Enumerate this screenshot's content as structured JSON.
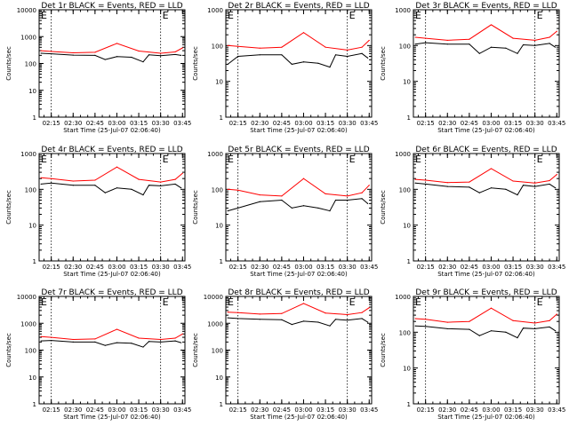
{
  "page": {
    "xlabel": "Start Time (25-Jul-07 02:06:40)",
    "ylabel": "Counts/sec",
    "x_ticks": [
      "02:15",
      "02:30",
      "02:45",
      "03:00",
      "03:15",
      "03:30",
      "03:45"
    ],
    "y_ticks": [
      "1",
      "10",
      "100",
      "1000",
      "10000"
    ],
    "event_marker": "E",
    "colors": {
      "events": "#000000",
      "lld": "#ff0000",
      "axes": "#000000",
      "marker_lines": "#000000"
    }
  },
  "chart_data": [
    {
      "type": "line",
      "title": "Det 1r BLACK = Events, RED = LLD",
      "x_minutes_range": [
        "02:06:40",
        "03:46:40"
      ],
      "ylim": [
        1,
        10000
      ],
      "yscale": "log",
      "marker_times": [
        "02:15",
        "03:30"
      ],
      "series": [
        {
          "name": "Events",
          "color": "#000000",
          "x": [
            "02:08",
            "02:15",
            "02:30",
            "02:45",
            "02:52",
            "03:00",
            "03:10",
            "03:18",
            "03:22",
            "03:30",
            "03:40",
            "03:44"
          ],
          "values": [
            240,
            230,
            205,
            200,
            140,
            180,
            170,
            115,
            210,
            195,
            215,
            200
          ]
        },
        {
          "name": "LLD",
          "color": "#ff0000",
          "x": [
            "02:08",
            "02:15",
            "02:30",
            "02:45",
            "03:00",
            "03:15",
            "03:30",
            "03:40",
            "03:45"
          ],
          "values": [
            300,
            280,
            250,
            260,
            560,
            290,
            240,
            270,
            380
          ]
        }
      ]
    },
    {
      "type": "line",
      "title": "Det 2r BLACK = Events, RED = LLD",
      "x_minutes_range": [
        "02:06:40",
        "03:46:40"
      ],
      "ylim": [
        1,
        1000
      ],
      "yscale": "log",
      "marker_times": [
        "02:15",
        "03:30"
      ],
      "series": [
        {
          "name": "Events",
          "color": "#000000",
          "x": [
            "02:08",
            "02:15",
            "02:30",
            "02:45",
            "02:52",
            "03:00",
            "03:10",
            "03:18",
            "03:22",
            "03:30",
            "03:40",
            "03:44"
          ],
          "values": [
            30,
            50,
            55,
            55,
            30,
            35,
            32,
            25,
            55,
            50,
            60,
            45
          ]
        },
        {
          "name": "LLD",
          "color": "#ff0000",
          "x": [
            "02:08",
            "02:15",
            "02:30",
            "02:45",
            "03:00",
            "03:15",
            "03:30",
            "03:40",
            "03:45"
          ],
          "values": [
            100,
            95,
            85,
            90,
            230,
            90,
            75,
            90,
            140
          ]
        }
      ]
    },
    {
      "type": "line",
      "title": "Det 3r BLACK = Events, RED = LLD",
      "x_minutes_range": [
        "02:06:40",
        "03:46:40"
      ],
      "ylim": [
        1,
        1000
      ],
      "yscale": "log",
      "marker_times": [
        "02:15",
        "03:30"
      ],
      "series": [
        {
          "name": "Events",
          "color": "#000000",
          "x": [
            "02:08",
            "02:15",
            "02:30",
            "02:45",
            "02:52",
            "03:00",
            "03:10",
            "03:18",
            "03:22",
            "03:30",
            "03:40",
            "03:44"
          ],
          "values": [
            110,
            120,
            110,
            110,
            60,
            90,
            85,
            60,
            105,
            100,
            115,
            90
          ]
        },
        {
          "name": "LLD",
          "color": "#ff0000",
          "x": [
            "02:08",
            "02:15",
            "02:30",
            "02:45",
            "03:00",
            "03:15",
            "03:30",
            "03:40",
            "03:45"
          ],
          "values": [
            170,
            160,
            140,
            150,
            380,
            160,
            140,
            170,
            250
          ]
        }
      ]
    },
    {
      "type": "line",
      "title": "Det 4r BLACK = Events, RED = LLD",
      "x_minutes_range": [
        "02:06:40",
        "03:46:40"
      ],
      "ylim": [
        1,
        1000
      ],
      "yscale": "log",
      "marker_times": [
        "02:15",
        "03:30"
      ],
      "series": [
        {
          "name": "Events",
          "color": "#000000",
          "x": [
            "02:08",
            "02:15",
            "02:30",
            "02:45",
            "02:52",
            "03:00",
            "03:10",
            "03:18",
            "03:22",
            "03:30",
            "03:40",
            "03:44"
          ],
          "values": [
            140,
            150,
            130,
            130,
            80,
            110,
            100,
            70,
            130,
            125,
            140,
            110
          ]
        },
        {
          "name": "LLD",
          "color": "#ff0000",
          "x": [
            "02:08",
            "02:15",
            "02:30",
            "02:45",
            "03:00",
            "03:15",
            "03:30",
            "03:40",
            "03:45"
          ],
          "values": [
            210,
            200,
            170,
            180,
            420,
            190,
            160,
            190,
            280
          ]
        }
      ]
    },
    {
      "type": "line",
      "title": "Det 5r BLACK = Events, RED = LLD",
      "x_minutes_range": [
        "02:06:40",
        "03:46:40"
      ],
      "ylim": [
        1,
        1000
      ],
      "yscale": "log",
      "marker_times": [
        "02:15",
        "03:30"
      ],
      "series": [
        {
          "name": "Events",
          "color": "#000000",
          "x": [
            "02:08",
            "02:15",
            "02:30",
            "02:45",
            "02:52",
            "03:00",
            "03:10",
            "03:18",
            "03:22",
            "03:30",
            "03:40",
            "03:44"
          ],
          "values": [
            25,
            30,
            45,
            50,
            30,
            35,
            30,
            25,
            50,
            50,
            55,
            40
          ]
        },
        {
          "name": "LLD",
          "color": "#ff0000",
          "x": [
            "02:08",
            "02:15",
            "02:30",
            "02:45",
            "03:00",
            "03:15",
            "03:30",
            "03:40",
            "03:45"
          ],
          "values": [
            100,
            95,
            70,
            65,
            200,
            75,
            65,
            80,
            130
          ]
        }
      ]
    },
    {
      "type": "line",
      "title": "Det 6r BLACK = Events, RED = LLD",
      "x_minutes_range": [
        "02:06:40",
        "03:46:40"
      ],
      "ylim": [
        1,
        1000
      ],
      "yscale": "log",
      "marker_times": [
        "02:15",
        "03:30"
      ],
      "series": [
        {
          "name": "Events",
          "color": "#000000",
          "x": [
            "02:08",
            "02:15",
            "02:30",
            "02:45",
            "02:52",
            "03:00",
            "03:10",
            "03:18",
            "03:22",
            "03:30",
            "03:40",
            "03:44"
          ],
          "values": [
            150,
            140,
            120,
            115,
            80,
            110,
            100,
            70,
            130,
            120,
            140,
            110
          ]
        },
        {
          "name": "LLD",
          "color": "#ff0000",
          "x": [
            "02:08",
            "02:15",
            "02:30",
            "02:45",
            "03:00",
            "03:15",
            "03:30",
            "03:40",
            "03:45"
          ],
          "values": [
            190,
            180,
            155,
            160,
            380,
            170,
            150,
            175,
            260
          ]
        }
      ]
    },
    {
      "type": "line",
      "title": "Det 7r BLACK = Events, RED = LLD",
      "x_minutes_range": [
        "02:06:40",
        "03:46:40"
      ],
      "ylim": [
        1,
        10000
      ],
      "yscale": "log",
      "marker_times": [
        "02:15",
        "03:30"
      ],
      "series": [
        {
          "name": "Events",
          "color": "#000000",
          "x": [
            "02:08",
            "02:15",
            "02:30",
            "02:45",
            "02:52",
            "03:00",
            "03:10",
            "03:18",
            "03:22",
            "03:30",
            "03:40",
            "03:44"
          ],
          "values": [
            220,
            230,
            200,
            200,
            150,
            190,
            180,
            130,
            210,
            200,
            220,
            190
          ]
        },
        {
          "name": "LLD",
          "color": "#ff0000",
          "x": [
            "02:08",
            "02:15",
            "02:30",
            "02:45",
            "03:00",
            "03:15",
            "03:30",
            "03:40",
            "03:45"
          ],
          "values": [
            320,
            300,
            250,
            260,
            600,
            280,
            250,
            280,
            400
          ]
        }
      ]
    },
    {
      "type": "line",
      "title": "Det 8r BLACK = Events, RED = LLD",
      "x_minutes_range": [
        "02:06:40",
        "03:46:40"
      ],
      "ylim": [
        1,
        10000
      ],
      "yscale": "log",
      "marker_times": [
        "02:15",
        "03:30"
      ],
      "series": [
        {
          "name": "Events",
          "color": "#000000",
          "x": [
            "02:08",
            "02:15",
            "02:30",
            "02:45",
            "02:52",
            "03:00",
            "03:10",
            "03:18",
            "03:22",
            "03:30",
            "03:40",
            "03:44"
          ],
          "values": [
            1600,
            1500,
            1400,
            1350,
            900,
            1200,
            1100,
            800,
            1400,
            1300,
            1500,
            1100
          ]
        },
        {
          "name": "LLD",
          "color": "#ff0000",
          "x": [
            "02:08",
            "02:15",
            "02:30",
            "02:45",
            "03:00",
            "03:15",
            "03:30",
            "03:40",
            "03:45"
          ],
          "values": [
            2600,
            2500,
            2200,
            2300,
            5500,
            2400,
            2100,
            2500,
            3800
          ]
        }
      ]
    },
    {
      "type": "line",
      "title": "Det 9r BLACK = Events, RED = LLD",
      "x_minutes_range": [
        "02:06:40",
        "03:46:40"
      ],
      "ylim": [
        1,
        1000
      ],
      "yscale": "log",
      "marker_times": [
        "02:15",
        "03:30"
      ],
      "series": [
        {
          "name": "Events",
          "color": "#000000",
          "x": [
            "02:08",
            "02:15",
            "02:30",
            "02:45",
            "02:52",
            "03:00",
            "03:10",
            "03:18",
            "03:22",
            "03:30",
            "03:40",
            "03:44"
          ],
          "values": [
            150,
            145,
            125,
            120,
            80,
            110,
            100,
            70,
            130,
            125,
            140,
            110
          ]
        },
        {
          "name": "LLD",
          "color": "#ff0000",
          "x": [
            "02:08",
            "02:15",
            "02:30",
            "02:45",
            "03:00",
            "03:15",
            "03:30",
            "03:40",
            "03:45"
          ],
          "values": [
            240,
            230,
            190,
            200,
            470,
            210,
            180,
            210,
            320
          ]
        }
      ]
    }
  ]
}
